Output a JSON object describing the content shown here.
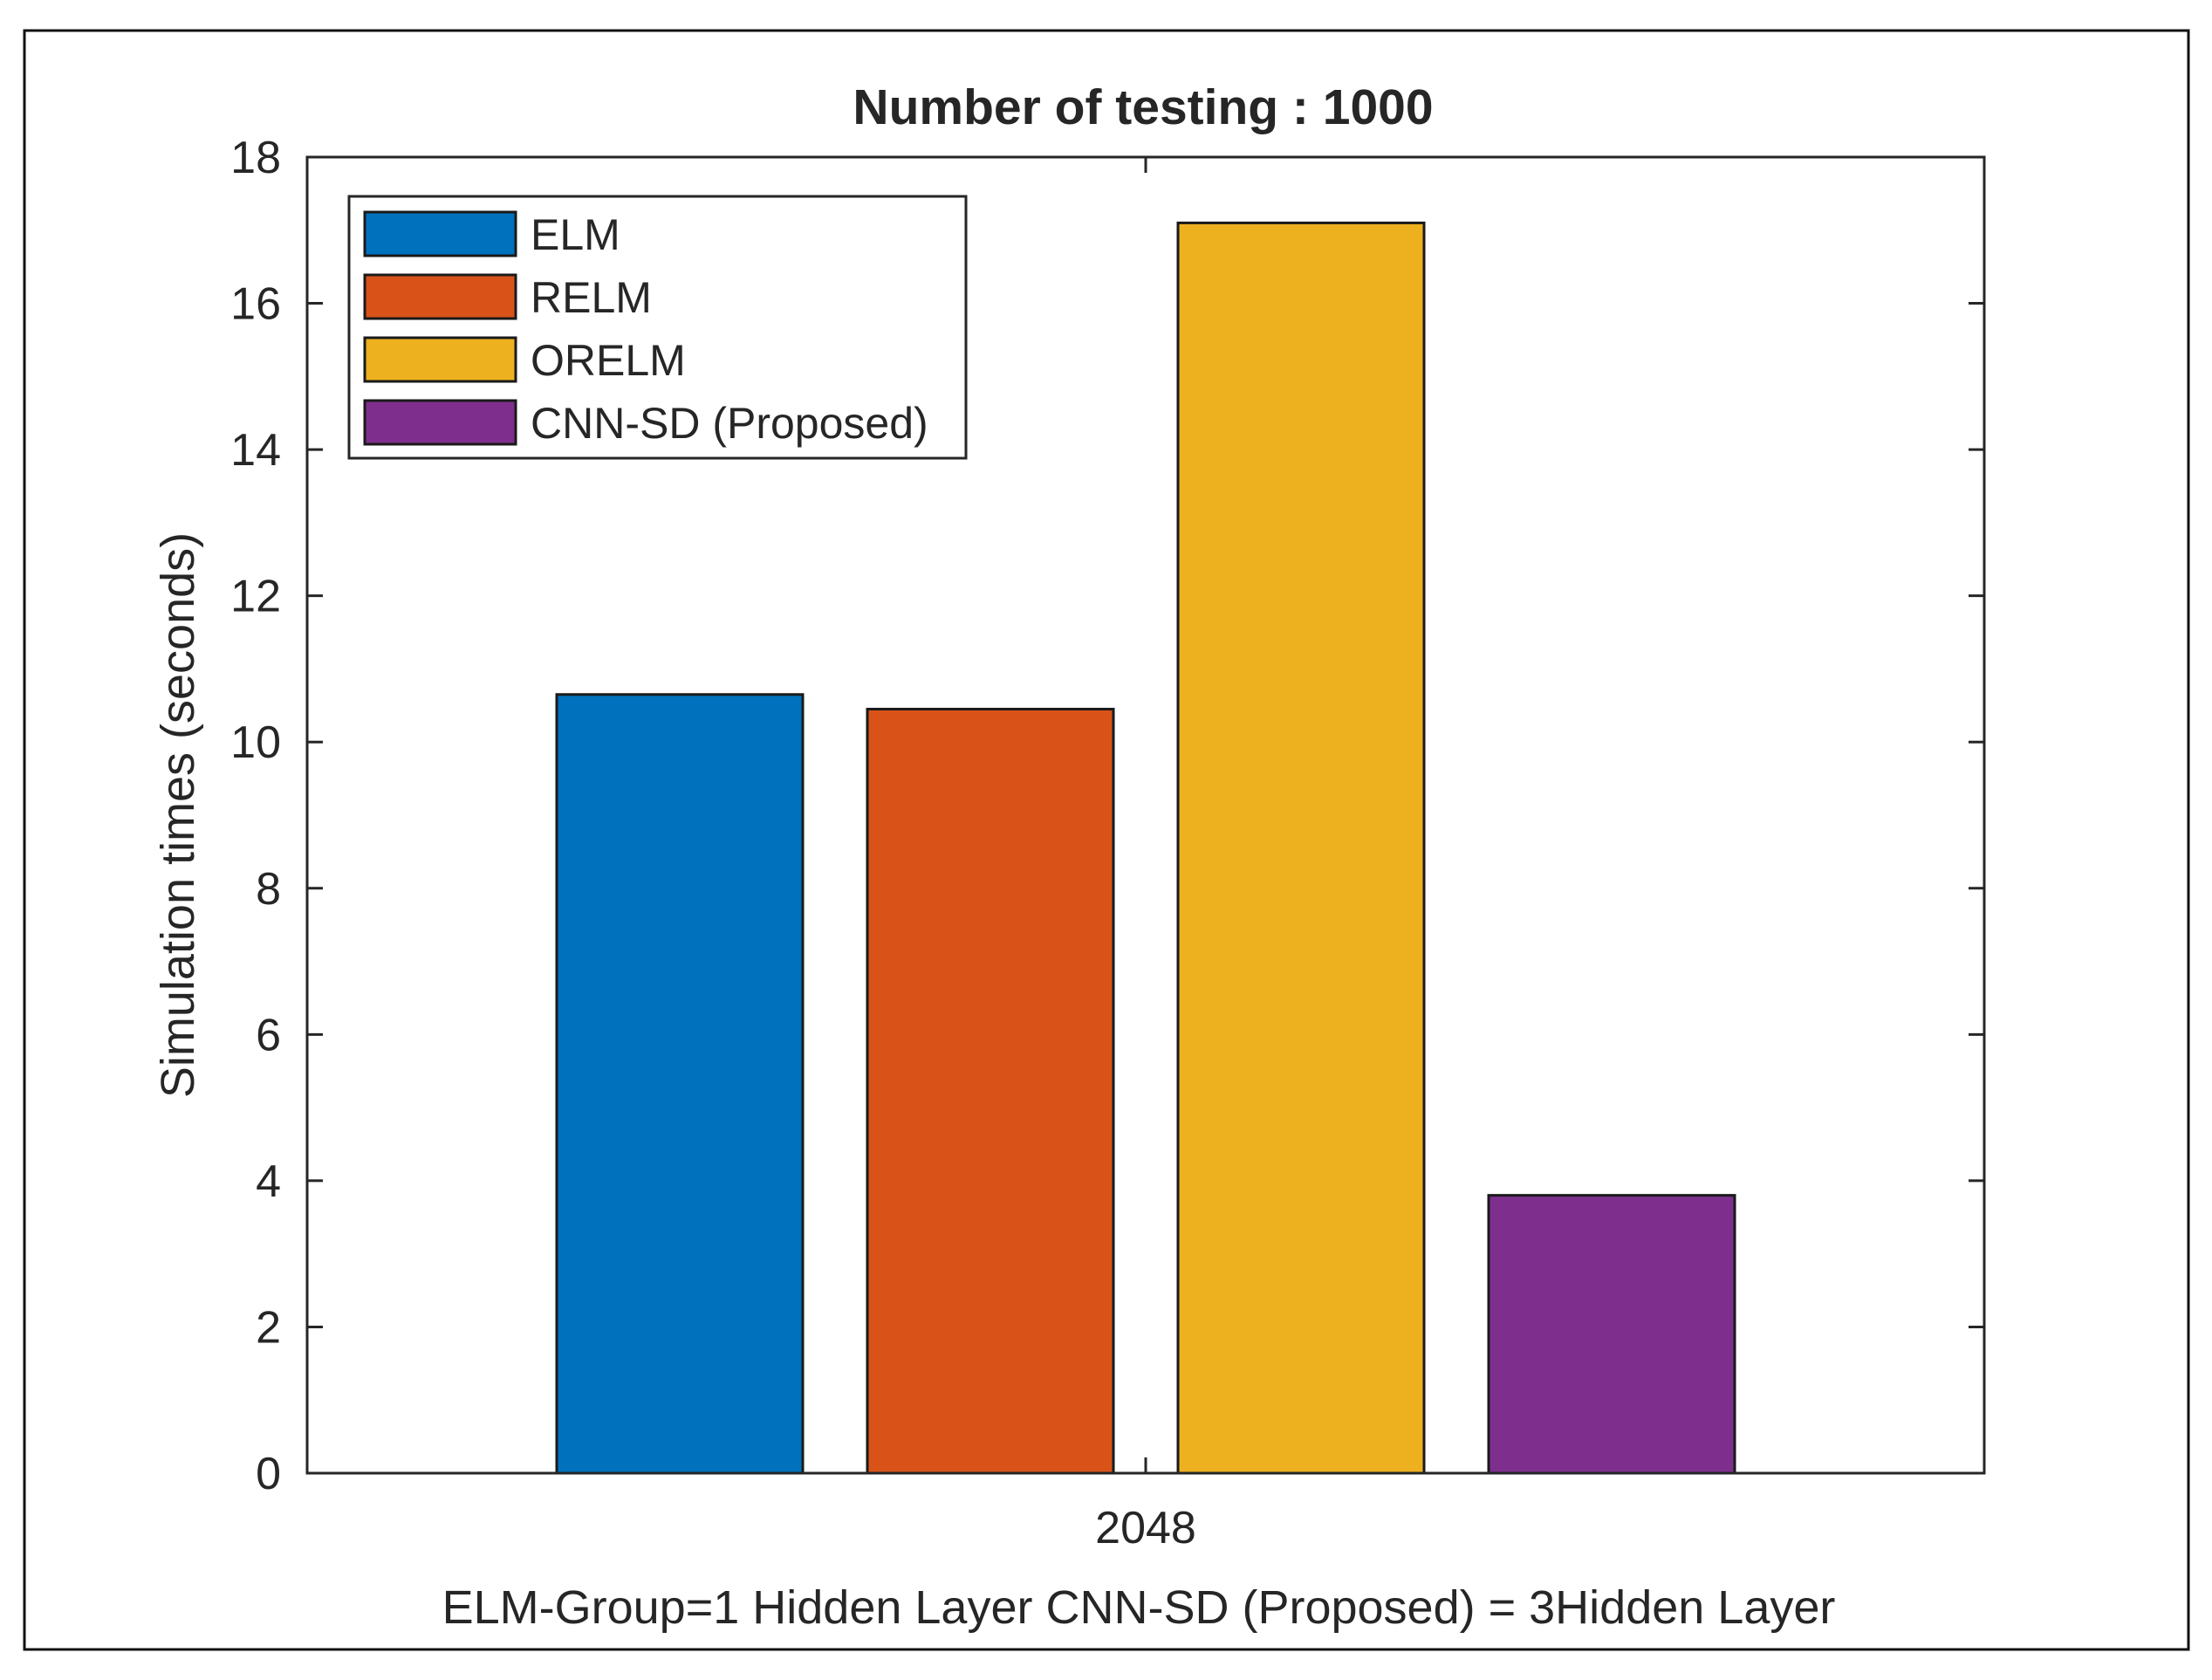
{
  "chart_data": {
    "type": "bar",
    "title": "Number of testing : 1000",
    "xlabel": "ELM-Group=1 Hidden Layer  CNN-SD (Proposed) = 3Hidden Layer",
    "ylabel": "Simulation times (seconds)",
    "categories": [
      "2048"
    ],
    "series": [
      {
        "name": "ELM",
        "values": [
          10.65
        ],
        "color": "#0072BD"
      },
      {
        "name": "RELM",
        "values": [
          10.45
        ],
        "color": "#D95319"
      },
      {
        "name": "ORELM",
        "values": [
          17.1
        ],
        "color": "#EDB120"
      },
      {
        "name": "CNN-SD (Proposed)",
        "values": [
          3.8
        ],
        "color": "#7E2F8E"
      }
    ],
    "ylim": [
      0,
      18
    ],
    "yticks": [
      0,
      2,
      4,
      6,
      8,
      10,
      12,
      14,
      16,
      18
    ],
    "grid": false,
    "legend_position": "top-left"
  }
}
